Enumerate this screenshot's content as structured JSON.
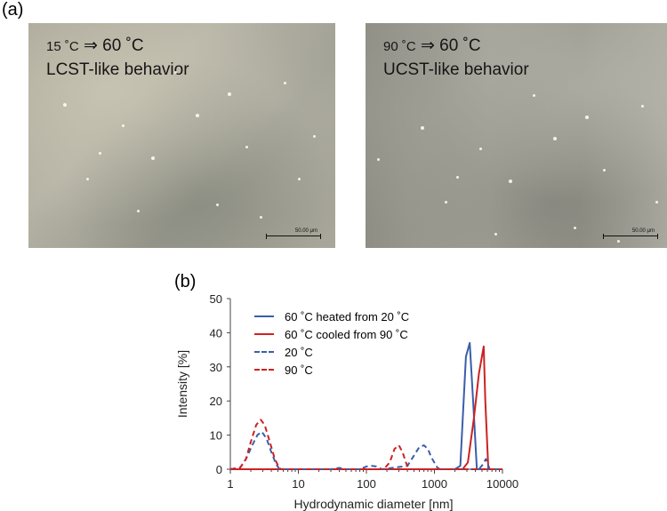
{
  "panels": {
    "a_label": "(a)",
    "b_label": "(b)"
  },
  "micrographs": [
    {
      "line1_prefix": "15 ˚C",
      "line1_arrow": " ⇒ ",
      "line1_main": "60 ˚C",
      "line2": "LCST-like behavior",
      "scale_label": "50.00 μm"
    },
    {
      "line1_prefix": "90 ˚C",
      "line1_arrow": " ⇒ ",
      "line1_main": "60 ˚C",
      "line2": "UCST-like behavior",
      "scale_label": "50.00 μm"
    }
  ],
  "chart_data": {
    "type": "line",
    "title": "",
    "xlabel": "Hydrodynamic diameter [nm]",
    "ylabel": "Intensity [%]",
    "xscale": "log",
    "xlim": [
      1,
      10000
    ],
    "ylim": [
      0,
      50
    ],
    "xticks": [
      1,
      10,
      100,
      1000,
      10000
    ],
    "xtick_labels": [
      "1",
      "10",
      "100",
      "1000",
      "10000"
    ],
    "yticks": [
      0,
      10,
      20,
      30,
      40,
      50
    ],
    "ytick_labels": [
      "0",
      "10",
      "20",
      "30",
      "40",
      "50"
    ],
    "legend_position": "top-left",
    "series": [
      {
        "name": "60 ˚C heated from 20 ˚C",
        "color": "#3a5ea8",
        "dash": "solid",
        "x": [
          1,
          2000,
          2400,
          2900,
          3300,
          3700,
          4200,
          10000
        ],
        "y": [
          0,
          0,
          1,
          33,
          37,
          20,
          0,
          0
        ]
      },
      {
        "name": "60 ˚C cooled from 90 ˚C",
        "color": "#cc2222",
        "dash": "solid",
        "x": [
          1,
          2600,
          3100,
          3800,
          4500,
          5300,
          5600,
          6200,
          10000
        ],
        "y": [
          0,
          0,
          2,
          15,
          28,
          36,
          20,
          0,
          0
        ]
      },
      {
        "name": "20 ˚C",
        "color": "#3a5ea8",
        "dash": "dashed",
        "x": [
          1,
          1.4,
          1.7,
          2.1,
          2.5,
          2.9,
          3.4,
          4.0,
          4.7,
          5.3,
          30,
          40,
          50,
          80,
          100,
          120,
          140,
          170,
          400,
          500,
          600,
          700,
          800,
          900,
          1100,
          1200,
          4500,
          5200,
          5700,
          6500,
          10000
        ],
        "y": [
          0,
          0.5,
          3,
          7,
          10,
          11,
          9,
          5,
          1.5,
          0,
          0,
          0.4,
          0,
          0,
          0.8,
          1.0,
          0.8,
          0,
          1,
          4,
          6.5,
          7,
          6,
          3.5,
          0.5,
          0,
          0,
          1.5,
          3,
          0,
          0
        ]
      },
      {
        "name": "90 ˚C",
        "color": "#cc2222",
        "dash": "dashed",
        "x": [
          1,
          1.4,
          1.7,
          2.0,
          2.4,
          2.8,
          3.2,
          3.8,
          4.5,
          5.2,
          5.6,
          180,
          220,
          260,
          300,
          340,
          380,
          420,
          10000
        ],
        "y": [
          0,
          0.5,
          3,
          8,
          13,
          14.5,
          13,
          8,
          3,
          0.5,
          0,
          0,
          2,
          6,
          7,
          5,
          2,
          0,
          0
        ]
      }
    ]
  }
}
